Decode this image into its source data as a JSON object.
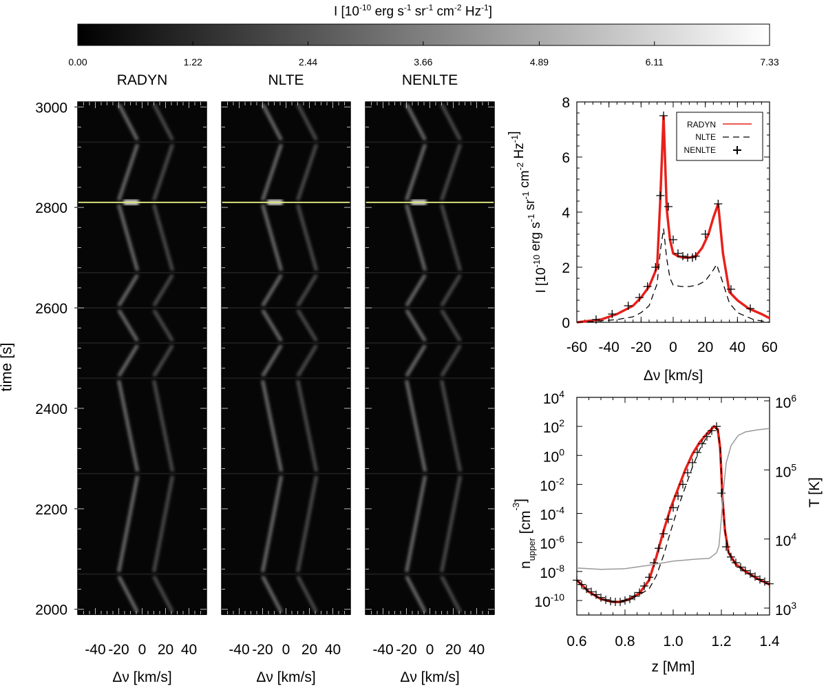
{
  "colorbar": {
    "title_main": "I [10",
    "title_exp1": "-10",
    "title_u1": " erg s",
    "title_exp2": "-1",
    "title_u2": " sr",
    "title_exp3": "-1",
    "title_u3": " cm",
    "title_exp4": "-2",
    "title_u4": " Hz",
    "title_exp5": "-1",
    "title_end": "]",
    "ticks": [
      "0.00",
      "1.22",
      "2.44",
      "3.66",
      "4.89",
      "6.11",
      "7.33"
    ],
    "range": [
      0.0,
      7.33
    ]
  },
  "panels": [
    {
      "title": "RADYN",
      "xlabel": "Δν [km/s]"
    },
    {
      "title": "NLTE",
      "xlabel": "Δν [km/s]"
    },
    {
      "title": "NENLTE",
      "xlabel": "Δν [km/s]"
    }
  ],
  "time_axis": {
    "label": "time [s]",
    "ticks": [
      "2000",
      "2200",
      "2400",
      "2600",
      "2800",
      "3000"
    ]
  },
  "dv_ticks": [
    "-40",
    "-20",
    "0",
    "20",
    "40"
  ],
  "highlight_time_label": "2810",
  "chart_data": [
    {
      "type": "heatmap",
      "title": "RADYN / NLTE / NENLTE",
      "xlabel": "Δν [km/s]",
      "ylabel": "time [s]",
      "xlim": [
        -55,
        55
      ],
      "ylim": [
        1990,
        3010
      ],
      "highlight_time": 2810,
      "segment_breaks": [
        2070,
        2270,
        2460,
        2530,
        2600,
        2670,
        2810,
        2930
      ],
      "colormap": "gray",
      "zlim": [
        0.0,
        7.33
      ]
    },
    {
      "type": "line",
      "title": "",
      "xlabel": "Δν [km/s]",
      "ylabel": "I [10^-10 erg s^-1 sr^-1 cm^-2 Hz^-1]",
      "xlim": [
        -60,
        60
      ],
      "ylim": [
        0,
        8
      ],
      "xticks": [
        "-60",
        "-40",
        "-20",
        "0",
        "20",
        "40",
        "60"
      ],
      "yticks": [
        "0",
        "2",
        "4",
        "6",
        "8"
      ],
      "legend": {
        "position": "top-right",
        "entries": [
          "RADYN",
          "NLTE",
          "NENLTE"
        ]
      },
      "series": [
        {
          "name": "RADYN",
          "style": "red-solid",
          "x": [
            -60,
            -45,
            -35,
            -25,
            -20,
            -15,
            -10,
            -8,
            -6,
            -4,
            -2,
            0,
            3,
            6,
            10,
            14,
            18,
            22,
            25,
            28,
            31,
            35,
            40,
            47,
            55,
            60
          ],
          "y": [
            0.0,
            0.1,
            0.3,
            0.6,
            0.9,
            1.3,
            2.0,
            4.5,
            7.5,
            4.1,
            3.0,
            2.5,
            2.4,
            2.35,
            2.35,
            2.4,
            2.7,
            3.2,
            3.8,
            4.3,
            2.5,
            1.1,
            0.8,
            0.5,
            0.3,
            0.15
          ]
        },
        {
          "name": "NLTE",
          "style": "black-dashed",
          "x": [
            -60,
            -45,
            -35,
            -25,
            -20,
            -15,
            -10,
            -8,
            -6,
            -4,
            -2,
            0,
            5,
            10,
            15,
            20,
            25,
            27,
            30,
            35,
            40,
            50,
            60
          ],
          "y": [
            0.0,
            0.05,
            0.1,
            0.2,
            0.35,
            0.6,
            1.4,
            2.6,
            3.4,
            2.3,
            1.6,
            1.35,
            1.3,
            1.3,
            1.35,
            1.5,
            1.9,
            2.1,
            1.6,
            0.7,
            0.35,
            0.1,
            0.0
          ]
        },
        {
          "name": "NENLTE",
          "style": "black-plus",
          "x": [
            -48,
            -38,
            -28,
            -21,
            -16,
            -11,
            -8,
            -6,
            -3,
            0,
            3,
            6,
            9,
            12,
            14,
            20,
            28,
            36,
            48
          ],
          "y": [
            0.1,
            0.3,
            0.6,
            0.9,
            1.3,
            2.0,
            4.6,
            7.5,
            4.2,
            3.0,
            2.5,
            2.4,
            2.35,
            2.35,
            2.4,
            3.2,
            4.3,
            1.2,
            0.5
          ]
        }
      ]
    },
    {
      "type": "line",
      "title": "",
      "xlabel": "z [Mm]",
      "ylabel": "n_upper [cm^-3]",
      "y2label": "T [K]",
      "xlim": [
        0.6,
        1.4
      ],
      "ylim_log10": [
        -11,
        4
      ],
      "y2lim_log10": [
        2.9,
        6.05
      ],
      "xticks": [
        "0.6",
        "0.8",
        "1.0",
        "1.2",
        "1.4"
      ],
      "yticks_exp": [
        "4",
        "2",
        "0",
        "-2",
        "-4",
        "-6",
        "-8",
        "-10"
      ],
      "y2ticks_exp": [
        "6",
        "5",
        "4",
        "3"
      ],
      "axis_base": "10",
      "series": [
        {
          "name": "RADYN",
          "style": "red-solid",
          "x": [
            0.6,
            0.65,
            0.7,
            0.75,
            0.78,
            0.82,
            0.86,
            0.9,
            0.93,
            0.96,
            0.99,
            1.02,
            1.05,
            1.08,
            1.11,
            1.14,
            1.17,
            1.185,
            1.195,
            1.205,
            1.215,
            1.23,
            1.26,
            1.3,
            1.35,
            1.4
          ],
          "y_log10": [
            -8.6,
            -9.4,
            -9.9,
            -10.1,
            -10.1,
            -9.9,
            -9.5,
            -8.6,
            -7.0,
            -5.2,
            -3.6,
            -2.3,
            -1.0,
            0.1,
            0.9,
            1.5,
            2.0,
            1.8,
            0.5,
            -3.0,
            -5.2,
            -6.7,
            -7.5,
            -8.0,
            -8.5,
            -8.9
          ]
        },
        {
          "name": "NLTE",
          "style": "black-dashed",
          "x": [
            0.6,
            0.65,
            0.7,
            0.75,
            0.78,
            0.82,
            0.86,
            0.9,
            0.93,
            0.96,
            0.99,
            1.02,
            1.05,
            1.08,
            1.11,
            1.14,
            1.17,
            1.185,
            1.195,
            1.205,
            1.215,
            1.23,
            1.26,
            1.3,
            1.35,
            1.4
          ],
          "y_log10": [
            -8.6,
            -9.4,
            -9.9,
            -10.1,
            -10.1,
            -9.9,
            -9.6,
            -9.2,
            -8.3,
            -6.9,
            -5.2,
            -3.6,
            -2.2,
            -0.8,
            0.4,
            1.3,
            1.9,
            1.8,
            0.5,
            -3.0,
            -5.2,
            -6.7,
            -7.5,
            -8.0,
            -8.5,
            -8.9
          ]
        },
        {
          "name": "NENLTE",
          "style": "black-plus",
          "x": [
            0.6,
            0.62,
            0.64,
            0.66,
            0.68,
            0.7,
            0.72,
            0.74,
            0.76,
            0.78,
            0.8,
            0.82,
            0.84,
            0.86,
            0.88,
            0.9,
            0.92,
            0.94,
            0.96,
            0.98,
            1.0,
            1.02,
            1.04,
            1.06,
            1.08,
            1.1,
            1.12,
            1.14,
            1.16,
            1.18,
            1.2,
            1.22,
            1.24,
            1.26,
            1.28,
            1.3,
            1.32,
            1.34,
            1.36,
            1.38,
            1.4
          ],
          "y_log10": [
            -8.6,
            -8.9,
            -9.2,
            -9.4,
            -9.6,
            -9.8,
            -9.95,
            -10.05,
            -10.1,
            -10.1,
            -10.0,
            -9.9,
            -9.7,
            -9.45,
            -9.0,
            -8.4,
            -7.4,
            -6.4,
            -5.4,
            -4.4,
            -3.6,
            -2.8,
            -2.0,
            -1.2,
            -0.5,
            0.2,
            0.8,
            1.3,
            1.7,
            2.0,
            -2.6,
            -6.3,
            -7.0,
            -7.4,
            -7.7,
            -7.95,
            -8.15,
            -8.35,
            -8.55,
            -8.7,
            -8.85
          ]
        },
        {
          "name": "T",
          "style": "gray-solid",
          "axis": "right",
          "x": [
            0.6,
            0.7,
            0.8,
            0.9,
            1.0,
            1.1,
            1.15,
            1.18,
            1.19,
            1.2,
            1.21,
            1.22,
            1.24,
            1.27,
            1.3,
            1.35,
            1.4
          ],
          "y_log10": [
            3.58,
            3.56,
            3.57,
            3.62,
            3.68,
            3.71,
            3.72,
            3.8,
            3.9,
            4.3,
            4.75,
            5.1,
            5.35,
            5.5,
            5.55,
            5.58,
            5.6
          ]
        }
      ]
    }
  ]
}
